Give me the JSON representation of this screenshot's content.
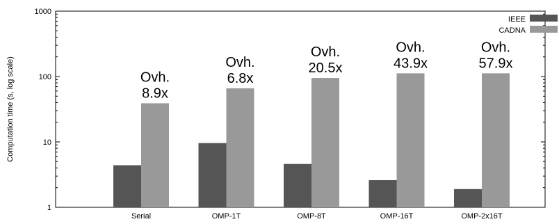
{
  "chart_data": {
    "type": "bar",
    "log_scale_y": true,
    "ylim": [
      1,
      1000
    ],
    "yticks": [
      "1",
      "10",
      "100",
      "1000"
    ],
    "ytick_values": [
      1,
      10,
      100,
      1000
    ],
    "ylabel": "Computation time (s, log scale)",
    "xlabel": "",
    "title": "",
    "grid": false,
    "legend_placement": "top-right",
    "categories": [
      "Serial",
      "OMP-1T",
      "OMP-8T",
      "OMP-16T",
      "OMP-2x16T"
    ],
    "series": [
      {
        "name": "IEEE",
        "color": "#555555",
        "values": [
          4.4,
          9.6,
          4.6,
          2.6,
          1.9
        ]
      },
      {
        "name": "CADNA",
        "color": "#999999",
        "values": [
          39,
          66,
          95,
          112,
          112
        ]
      }
    ],
    "annotations": [
      {
        "category": "Serial",
        "line1": "Ovh.",
        "line2": "8.9x"
      },
      {
        "category": "OMP-1T",
        "line1": "Ovh.",
        "line2": "6.8x"
      },
      {
        "category": "OMP-8T",
        "line1": "Ovh.",
        "line2": "20.5x"
      },
      {
        "category": "OMP-16T",
        "line1": "Ovh.",
        "line2": "43.9x"
      },
      {
        "category": "OMP-2x16T",
        "line1": "Ovh.",
        "line2": "57.9x"
      }
    ]
  }
}
